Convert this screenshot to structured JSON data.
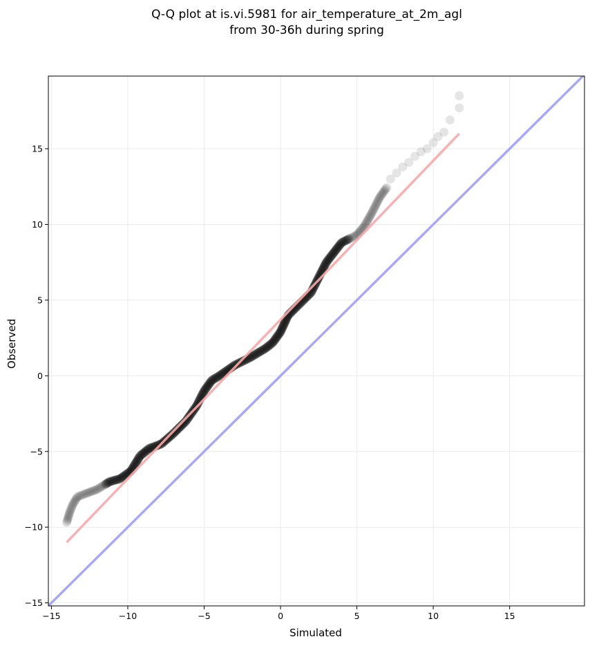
{
  "chart_data": {
    "type": "scatter",
    "title": [
      "Q-Q plot at is.vi.5981 for air_temperature_at_2m_agl",
      "from 30-36h during spring"
    ],
    "xlabel": "Simulated",
    "ylabel": "Observed",
    "xlim": [
      -15.2,
      19.9
    ],
    "ylim": [
      -15.2,
      19.8
    ],
    "xticks": [
      -15,
      -10,
      -5,
      0,
      5,
      10,
      15
    ],
    "yticks": [
      -15,
      -10,
      -5,
      0,
      5,
      10,
      15
    ],
    "xtick_labels": [
      "−15",
      "−10",
      "−5",
      "0",
      "5",
      "10",
      "15"
    ],
    "ytick_labels": [
      "−15",
      "−10",
      "−5",
      "0",
      "5",
      "10",
      "15"
    ],
    "grid": true,
    "colors": {
      "points": "#000000",
      "fit_line": "#f7a8a8",
      "identity_line": "#a8a8f5",
      "grid": "#ebebeb"
    },
    "quantile_curve": {
      "x": [
        -14,
        -13.8,
        -13.6,
        -13.3,
        -12.8,
        -12,
        -11.2,
        -10.5,
        -9.8,
        -9.2,
        -8.6,
        -7.8,
        -7,
        -6.2,
        -5.5,
        -5,
        -4.5,
        -4,
        -3,
        -2,
        -1,
        -0.5,
        0,
        0.5,
        1,
        2,
        3,
        4,
        5,
        5.5,
        6,
        6.5,
        7
      ],
      "y": [
        -9.7,
        -9,
        -8.5,
        -8,
        -7.8,
        -7.5,
        -7,
        -6.8,
        -6.3,
        -5.3,
        -4.8,
        -4.5,
        -3.8,
        -3,
        -2,
        -1,
        -0.3,
        0,
        0.7,
        1.2,
        1.8,
        2.2,
        2.9,
        4,
        4.5,
        5.5,
        7.5,
        8.8,
        9.3,
        9.9,
        10.8,
        11.8,
        12.5
      ]
    },
    "quantile_tail_points": {
      "x": [
        7.2,
        7.6,
        8,
        8.4,
        8.8,
        9.2,
        9.6,
        10,
        10.3,
        10.7,
        11.1,
        11.7,
        11.7
      ],
      "y": [
        13,
        13.4,
        13.8,
        14.1,
        14.5,
        14.8,
        15,
        15.4,
        15.8,
        16.1,
        16.9,
        17.7,
        18.5
      ]
    },
    "fit_line": {
      "x": [
        -14,
        11.7
      ],
      "y": [
        -11,
        16
      ]
    },
    "identity_line": {
      "x": [
        -15.2,
        19.9
      ],
      "y": [
        -15.2,
        19.9
      ]
    }
  }
}
